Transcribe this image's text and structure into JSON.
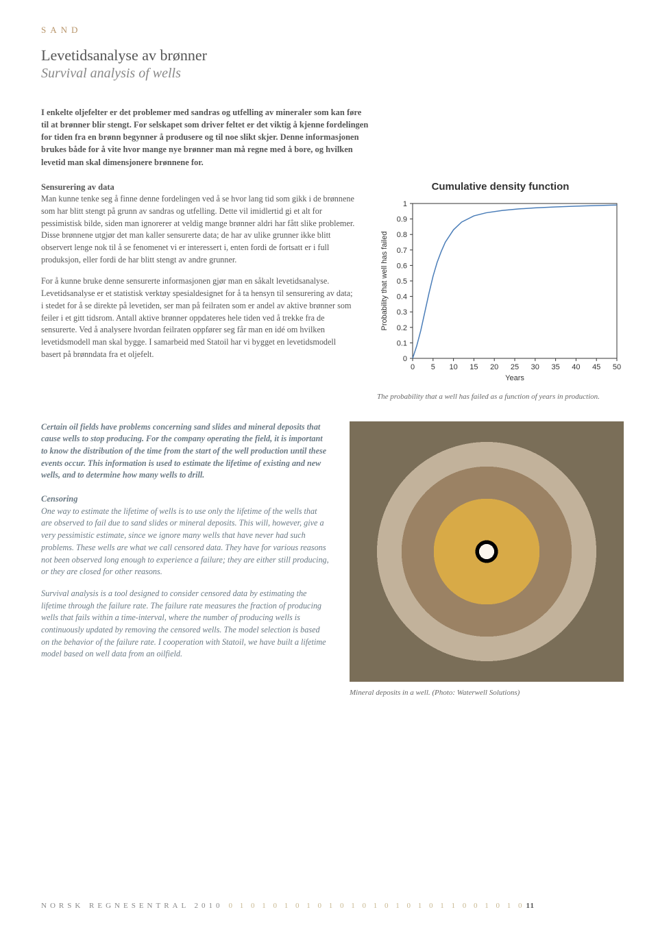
{
  "section_header": "SAND",
  "title_primary": "Levetidsanalyse av brønner",
  "title_secondary": "Survival analysis of wells",
  "intro_no": "I enkelte oljefelter er det problemer med sandras og utfelling av mineraler som kan føre til at brønner blir stengt. For selskapet som driver feltet er det viktig å kjenne fordelingen for tiden fra en brønn begynner å produsere og til noe slikt skjer. Denne informasjonen brukes både for å vite hvor mange nye brønner man må regne med å bore, og hvilken levetid man skal dimensjonere brønnene for.",
  "subhead1": "Sensurering av data",
  "para1": "Man kunne tenke seg å finne denne fordelingen ved å se hvor lang tid som gikk i de brønnene som har blitt stengt på grunn av sandras og utfelling. Dette vil imidlertid gi et alt for pessimistisk bilde, siden man ignorerer at veldig mange brønner aldri har fått slike problemer. Disse brønnene utgjør det man kaller sensurerte data; de har av ulike grunner ikke blitt observert lenge nok til å se fenomenet vi er interessert i, enten fordi de fortsatt er i full produksjon, eller fordi de har blitt stengt av andre grunner.",
  "para2": "For å kunne bruke denne sensurerte informasjonen gjør man en såkalt levetidsanalyse. Levetidsanalyse er et statistisk verktøy spesialdesignet for å ta hensyn til sensurering av data; i stedet for å se direkte på levetiden, ser man på feilraten som er andel av aktive brønner som feiler i et gitt tidsrom. Antall aktive brønner oppdateres hele tiden ved å trekke fra de sensurerte. Ved å analysere hvordan feilraten oppfører seg får man en idé om hvilken levetidsmodell man skal bygge. I samarbeid med Statoil har vi bygget en levetidsmodell basert på brønndata fra et oljefelt.",
  "chart": {
    "title": "Cumulative density function",
    "xlabel": "Years",
    "ylabel": "Probability that well has failed",
    "xlim": [
      0,
      50
    ],
    "ylim": [
      0,
      1
    ],
    "xticks": [
      0,
      5,
      10,
      15,
      20,
      25,
      30,
      35,
      40,
      45,
      50
    ],
    "yticks": [
      0,
      0.1,
      0.2,
      0.3,
      0.4,
      0.5,
      0.6,
      0.7,
      0.8,
      0.9,
      1
    ],
    "curve_color": "#4a7db8",
    "bg": "#ffffff",
    "axis_color": "#333333",
    "points": [
      [
        0,
        0.0
      ],
      [
        1,
        0.08
      ],
      [
        2,
        0.18
      ],
      [
        3,
        0.3
      ],
      [
        4,
        0.42
      ],
      [
        5,
        0.53
      ],
      [
        6,
        0.62
      ],
      [
        7,
        0.69
      ],
      [
        8,
        0.75
      ],
      [
        9,
        0.79
      ],
      [
        10,
        0.83
      ],
      [
        12,
        0.88
      ],
      [
        15,
        0.92
      ],
      [
        18,
        0.94
      ],
      [
        22,
        0.955
      ],
      [
        26,
        0.965
      ],
      [
        30,
        0.972
      ],
      [
        35,
        0.978
      ],
      [
        40,
        0.983
      ],
      [
        45,
        0.987
      ],
      [
        50,
        0.99
      ]
    ]
  },
  "chart_caption": "The probability that a well has failed as a function of years in production.",
  "english_intro": "Certain oil fields have problems concerning sand slides and mineral deposits that cause wells to stop producing. For the company operating the field, it is important to know the distribution of the time from the start of the well production until these events occur. This information is used to estimate the lifetime of existing and new wells, and to determine how many wells to drill.",
  "subhead2": "Censoring",
  "para3": "One way to estimate the lifetime of wells is to use only the lifetime of the wells that are observed to fail due to sand slides or mineral deposits. This will, however, give a very pessimistic estimate, since we ignore many wells that have never had such problems. These wells are what we call censored data. They have for various reasons not been observed long enough to experience a failure;  they are either still producing, or they are closed for other reasons.",
  "para4": "Survival analysis is a tool designed to consider censored data by estimating the lifetime through the failure rate. The failure rate measures the fraction of producing wells that fails within a time-interval, where the number of producing wells is continuously updated by removing the censored wells. The model selection is based on the behavior of the failure rate. I cooperation with Statoil, we have built a lifetime model based on well data from an oilfield.",
  "img_caption": "Mineral deposits in a well. (Photo: Waterwell Solutions)",
  "footer_text": "NORSK REGNESENTRAL 2010",
  "footer_binary": "0 1 0 1 0 1 0 1 0 1 0 1 0 1 0 1 0 1 0 1 1 0 0 1 0 1 0",
  "page_number": "11"
}
